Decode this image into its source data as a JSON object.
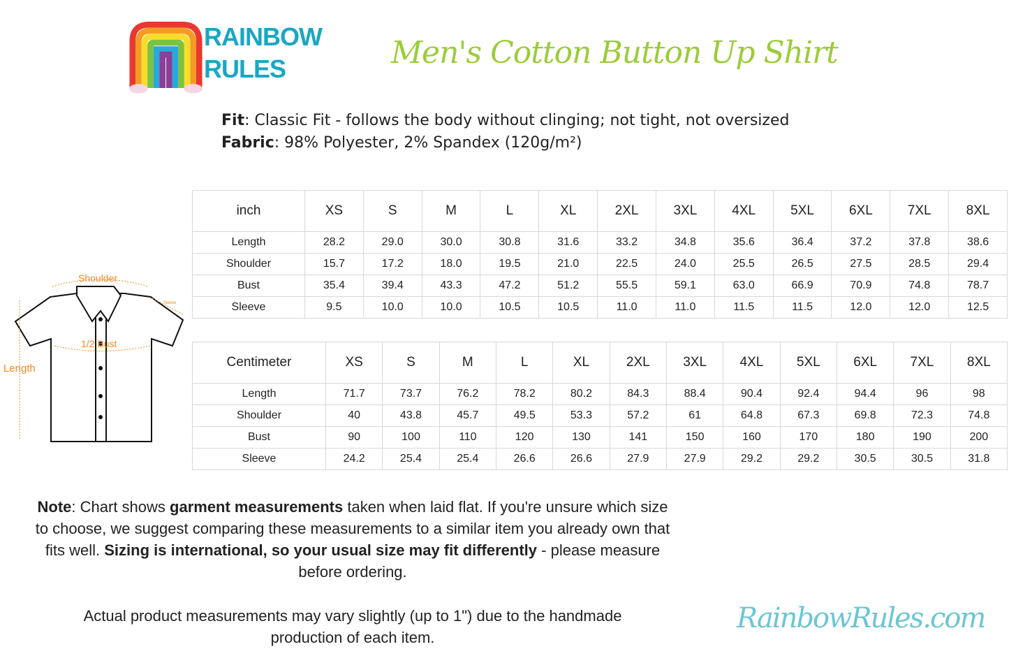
{
  "brand": {
    "logo_text": "RAINBOW RULES",
    "website": "RainbowRules.com"
  },
  "title": "Men's Cotton Button Up Shirt",
  "specs": [
    {
      "label": "Fit",
      "value": ": Classic Fit - follows the body without clinging; not tight, not oversized"
    },
    {
      "label": "Fabric",
      "value": ": 98% Polyester, 2% Spandex (120g/m²)"
    }
  ],
  "diagram": {
    "shoulder": "Shoulder",
    "sleeve": "Sleeve",
    "bust": "1/2 Bust",
    "length": "Length",
    "accent": "#f08a24"
  },
  "sizes": [
    "XS",
    "S",
    "M",
    "L",
    "XL",
    "2XL",
    "3XL",
    "4XL",
    "5XL",
    "6XL",
    "7XL",
    "8XL"
  ],
  "inch_table": {
    "unit": "inch",
    "rows": [
      {
        "label": "Length",
        "values": [
          "28.2",
          "29.0",
          "30.0",
          "30.8",
          "31.6",
          "33.2",
          "34.8",
          "35.6",
          "36.4",
          "37.2",
          "37.8",
          "38.6"
        ]
      },
      {
        "label": "Shoulder",
        "values": [
          "15.7",
          "17.2",
          "18.0",
          "19.5",
          "21.0",
          "22.5",
          "24.0",
          "25.5",
          "26.5",
          "27.5",
          "28.5",
          "29.4"
        ]
      },
      {
        "label": "Bust",
        "values": [
          "35.4",
          "39.4",
          "43.3",
          "47.2",
          "51.2",
          "55.5",
          "59.1",
          "63.0",
          "66.9",
          "70.9",
          "74.8",
          "78.7"
        ]
      },
      {
        "label": "Sleeve",
        "values": [
          "9.5",
          "10.0",
          "10.0",
          "10.5",
          "10.5",
          "11.0",
          "11.0",
          "11.5",
          "11.5",
          "12.0",
          "12.0",
          "12.5"
        ]
      }
    ]
  },
  "cm_table": {
    "unit": "Centimeter",
    "rows": [
      {
        "label": "Length",
        "values": [
          "71.7",
          "73.7",
          "76.2",
          "78.2",
          "80.2",
          "84.3",
          "88.4",
          "90.4",
          "92.4",
          "94.4",
          "96",
          "98"
        ]
      },
      {
        "label": "Shoulder",
        "values": [
          "40",
          "43.8",
          "45.7",
          "49.5",
          "53.3",
          "57.2",
          "61",
          "64.8",
          "67.3",
          "69.8",
          "72.3",
          "74.8"
        ]
      },
      {
        "label": "Bust",
        "values": [
          "90",
          "100",
          "110",
          "120",
          "130",
          "141",
          "150",
          "160",
          "170",
          "180",
          "190",
          "200"
        ]
      },
      {
        "label": "Sleeve",
        "values": [
          "24.2",
          "25.4",
          "25.4",
          "26.6",
          "26.6",
          "27.9",
          "27.9",
          "29.2",
          "29.2",
          "30.5",
          "30.5",
          "31.8"
        ]
      }
    ]
  },
  "note": {
    "label": "Note",
    "p1": ": Chart shows ",
    "b1": "garment measurements",
    "p2": " taken when laid flat. If you're unsure which size to choose, we suggest comparing these measurements to a similar item you already own that fits well. ",
    "b2": "Sizing is international, so your usual size may fit differently",
    "p3": " - please measure before ordering.",
    "footer": "Actual product measurements may vary slightly (up to 1\") due to the handmade production of each item."
  }
}
